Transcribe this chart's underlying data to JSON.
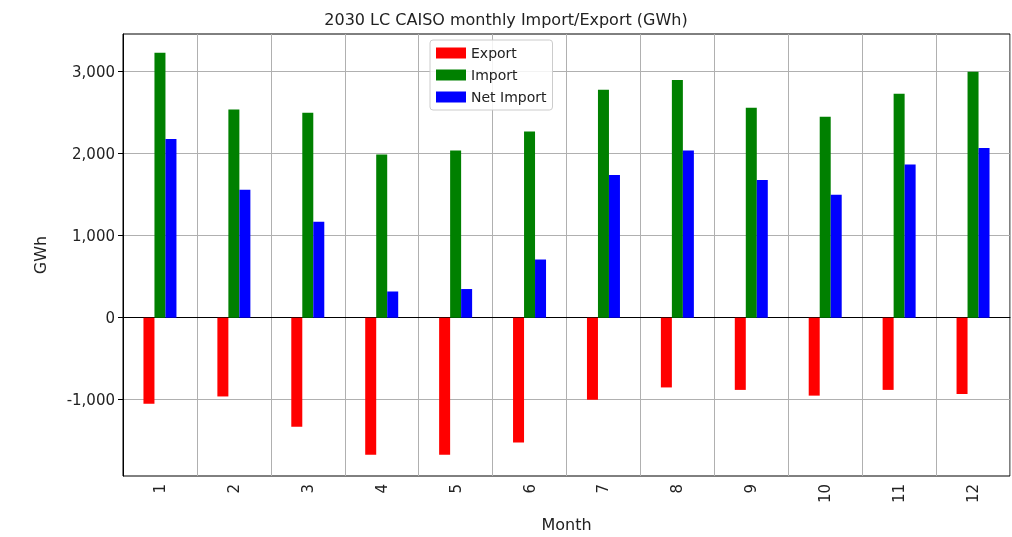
{
  "chart_data": {
    "type": "bar",
    "title": "2030 LC CAISO monthly Import/Export (GWh)",
    "xlabel": "Month",
    "ylabel": "GWh",
    "categories": [
      "1",
      "2",
      "3",
      "4",
      "5",
      "6",
      "7",
      "8",
      "9",
      "10",
      "11",
      "12"
    ],
    "series": [
      {
        "name": "Export",
        "color": "#ff0000",
        "values": [
          -1050,
          -960,
          -1330,
          -1670,
          -1670,
          -1520,
          -1000,
          -850,
          -880,
          -950,
          -880,
          -930
        ]
      },
      {
        "name": "Import",
        "color": "#008000",
        "values": [
          3230,
          2540,
          2500,
          1990,
          2040,
          2270,
          2780,
          2900,
          2560,
          2450,
          2730,
          3000
        ]
      },
      {
        "name": "Net Import",
        "color": "#0000ff",
        "values": [
          2180,
          1560,
          1170,
          320,
          350,
          710,
          1740,
          2040,
          1680,
          1500,
          1870,
          2070
        ]
      }
    ],
    "ylim": [
      -1930,
      3460
    ],
    "yticks": [
      {
        "value": -1000,
        "label": "-1,000"
      },
      0,
      {
        "value": 1000,
        "label": "1,000"
      },
      {
        "value": 2000,
        "label": "2,000"
      },
      {
        "value": 3000,
        "label": "3,000"
      }
    ],
    "grid": true,
    "legend": "top"
  }
}
